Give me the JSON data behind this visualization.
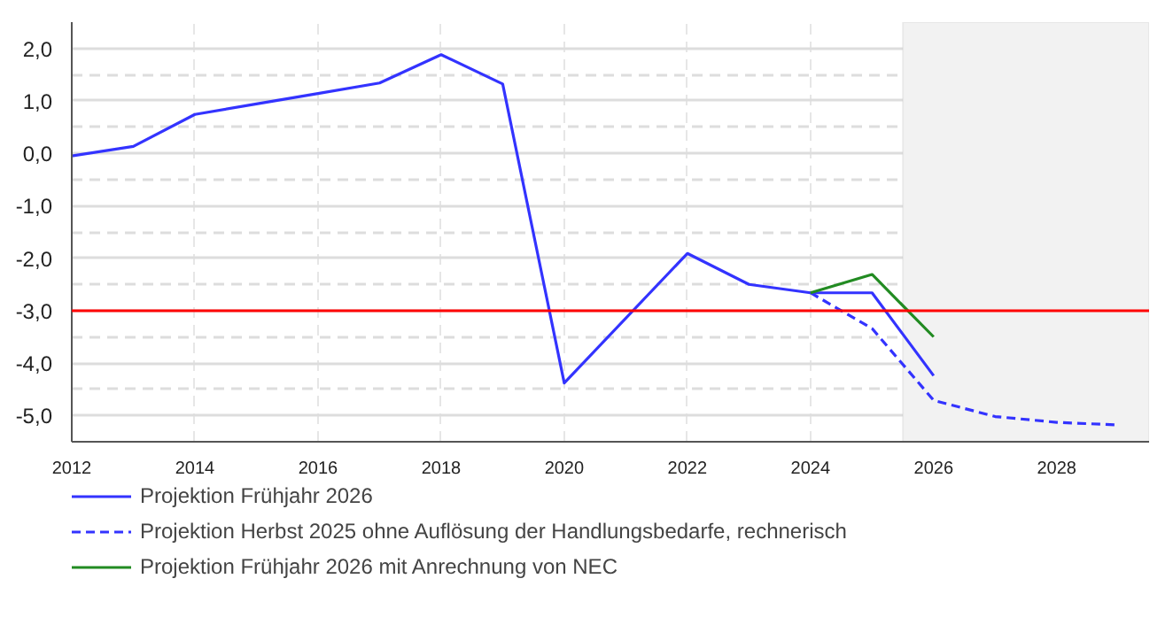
{
  "chart_data": {
    "type": "line",
    "xlim": [
      2012,
      2029.5
    ],
    "ylim": [
      -5.5,
      2.5
    ],
    "xticks": [
      2012,
      2014,
      2016,
      2018,
      2020,
      2022,
      2024,
      2026,
      2028
    ],
    "yticks": [
      {
        "value": -5,
        "label": "-5,0"
      },
      {
        "value": -4,
        "label": "-4,0"
      },
      {
        "value": -3,
        "label": "-3,0"
      },
      {
        "value": -2,
        "label": "-2,0"
      },
      {
        "value": -1,
        "label": "-1,0"
      },
      {
        "value": 0,
        "label": "0,0"
      },
      {
        "value": 1,
        "label": "1,0"
      },
      {
        "value": 2,
        "label": "2,0"
      }
    ],
    "grid": true,
    "legend": "bottom",
    "marker": "none",
    "series": [
      {
        "name": "Projektion Frühjahr 2026",
        "color": "#3333ff",
        "line_style": "solid",
        "x": [
          2012,
          2013,
          2014,
          2015,
          2016,
          2017,
          2018,
          2019,
          2020,
          2022,
          2023,
          2024,
          2025,
          2026
        ],
        "values": [
          -0.05,
          0.13,
          0.74,
          0.94,
          1.14,
          1.34,
          1.88,
          1.32,
          -4.38,
          -1.91,
          -2.5,
          -2.66,
          -2.66,
          -4.24
        ]
      },
      {
        "name": "Projektion Herbst 2025 ohne Auflösung der Handlungsbedarfe, rechnerisch",
        "color": "#3333ff",
        "line_style": "dashed",
        "x": [
          2024,
          2025,
          2026,
          2027,
          2028,
          2029
        ],
        "values": [
          -2.66,
          -3.34,
          -4.71,
          -5.02,
          -5.13,
          -5.18
        ]
      },
      {
        "name": "Projektion Frühjahr 2026 mit Anrechnung von NEC",
        "color": "#228b22",
        "line_style": "solid",
        "x": [
          2024,
          2025,
          2026
        ],
        "values": [
          -2.66,
          -2.31,
          -3.5
        ]
      }
    ],
    "ref_lines": [
      {
        "axis": "y",
        "value": -3,
        "color": "#ff0000",
        "line_style": "solid"
      }
    ],
    "bands": [
      {
        "axis": "x",
        "from": 2025.5,
        "to": 2029.5,
        "color": "#f2f2f2"
      }
    ]
  }
}
